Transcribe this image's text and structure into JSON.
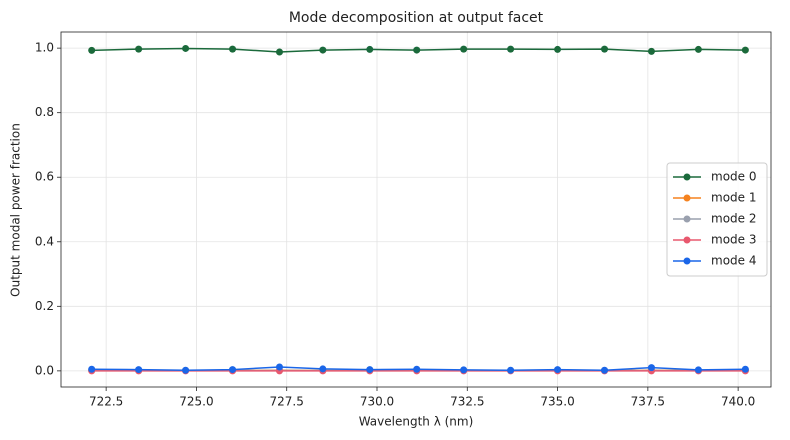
{
  "chart_data": {
    "type": "line",
    "title": "Mode decomposition at output facet",
    "x_label": "Wavelength λ (nm)",
    "y_label": "Output modal power fraction",
    "x": [
      722.1,
      723.4,
      724.7,
      726.0,
      727.3,
      728.5,
      729.8,
      731.1,
      732.4,
      733.7,
      735.0,
      736.3,
      737.6,
      738.9,
      740.2
    ],
    "series": [
      {
        "name": "mode 0",
        "color": "#1b6a3b",
        "values": [
          0.993,
          0.997,
          0.999,
          0.997,
          0.988,
          0.994,
          0.996,
          0.994,
          0.997,
          0.997,
          0.996,
          0.997,
          0.99,
          0.996,
          0.994
        ]
      },
      {
        "name": "mode 1",
        "color": "#f5821f",
        "values": [
          0.001,
          0.001,
          0.001,
          0.001,
          0.002,
          0.001,
          0.001,
          0.001,
          0.001,
          0.001,
          0.001,
          0.001,
          0.002,
          0.001,
          0.001
        ]
      },
      {
        "name": "mode 2",
        "color": "#9aa0ae",
        "values": [
          0.001,
          0.001,
          0.001,
          0.001,
          0.001,
          0.001,
          0.001,
          0.001,
          0.001,
          0.001,
          0.001,
          0.001,
          0.001,
          0.001,
          0.001
        ]
      },
      {
        "name": "mode 3",
        "color": "#e8586e",
        "values": [
          0.0,
          0.0,
          0.0,
          0.0,
          0.0,
          0.0,
          0.0,
          0.0,
          0.0,
          0.0,
          0.0,
          0.0,
          0.0,
          0.0,
          0.0
        ]
      },
      {
        "name": "mode 4",
        "color": "#1a66e8",
        "values": [
          0.005,
          0.004,
          0.002,
          0.004,
          0.012,
          0.006,
          0.004,
          0.005,
          0.003,
          0.002,
          0.004,
          0.002,
          0.01,
          0.003,
          0.005
        ]
      }
    ],
    "xlim": [
      721.25,
      740.91
    ],
    "ylim": [
      -0.05,
      1.05
    ],
    "xticks": [
      722.5,
      {
        "value": 725,
        "label": "725.0"
      },
      727.5,
      {
        "value": 730,
        "label": "730.0"
      },
      732.5,
      {
        "value": 735,
        "label": "735.0"
      },
      737.5,
      {
        "value": 740,
        "label": "740.0"
      }
    ],
    "yticks": [
      {
        "value": 0,
        "label": "0.0"
      },
      0.2,
      0.4,
      0.6,
      0.8,
      {
        "value": 1,
        "label": "1.0"
      }
    ],
    "grid": true,
    "legend": "right"
  }
}
